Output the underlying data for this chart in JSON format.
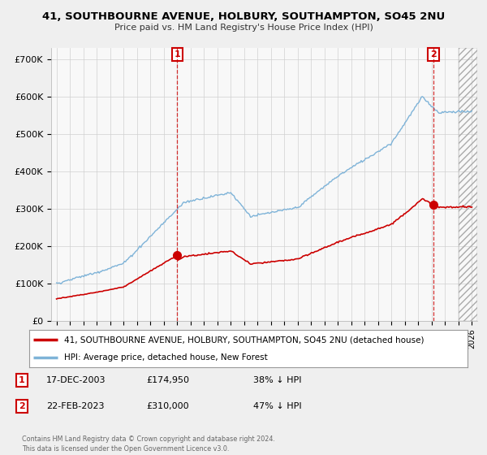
{
  "title": "41, SOUTHBOURNE AVENUE, HOLBURY, SOUTHAMPTON, SO45 2NU",
  "subtitle": "Price paid vs. HM Land Registry's House Price Index (HPI)",
  "yticks": [
    0,
    100000,
    200000,
    300000,
    400000,
    500000,
    600000,
    700000
  ],
  "ytick_labels": [
    "£0",
    "£100K",
    "£200K",
    "£300K",
    "£400K",
    "£500K",
    "£600K",
    "£700K"
  ],
  "xlim_start": 1994.6,
  "xlim_end": 2026.4,
  "ylim": [
    0,
    730000
  ],
  "hpi_color": "#7eb3d8",
  "price_color": "#cc0000",
  "t1_year": 2004.0,
  "t2_year": 2023.12,
  "price1": 174950,
  "price2": 310000,
  "legend_line1": "41, SOUTHBOURNE AVENUE, HOLBURY, SOUTHAMPTON, SO45 2NU (detached house)",
  "legend_line2": "HPI: Average price, detached house, New Forest",
  "transaction1_date": "17-DEC-2003",
  "transaction1_price": "£174,950",
  "transaction1_label": "38% ↓ HPI",
  "transaction2_date": "22-FEB-2023",
  "transaction2_price": "£310,000",
  "transaction2_label": "47% ↓ HPI",
  "footnote": "Contains HM Land Registry data © Crown copyright and database right 2024.\nThis data is licensed under the Open Government Licence v3.0.",
  "bg_color": "#efefef",
  "plot_bg": "#f8f8f8",
  "hatch_start": 2025.0
}
